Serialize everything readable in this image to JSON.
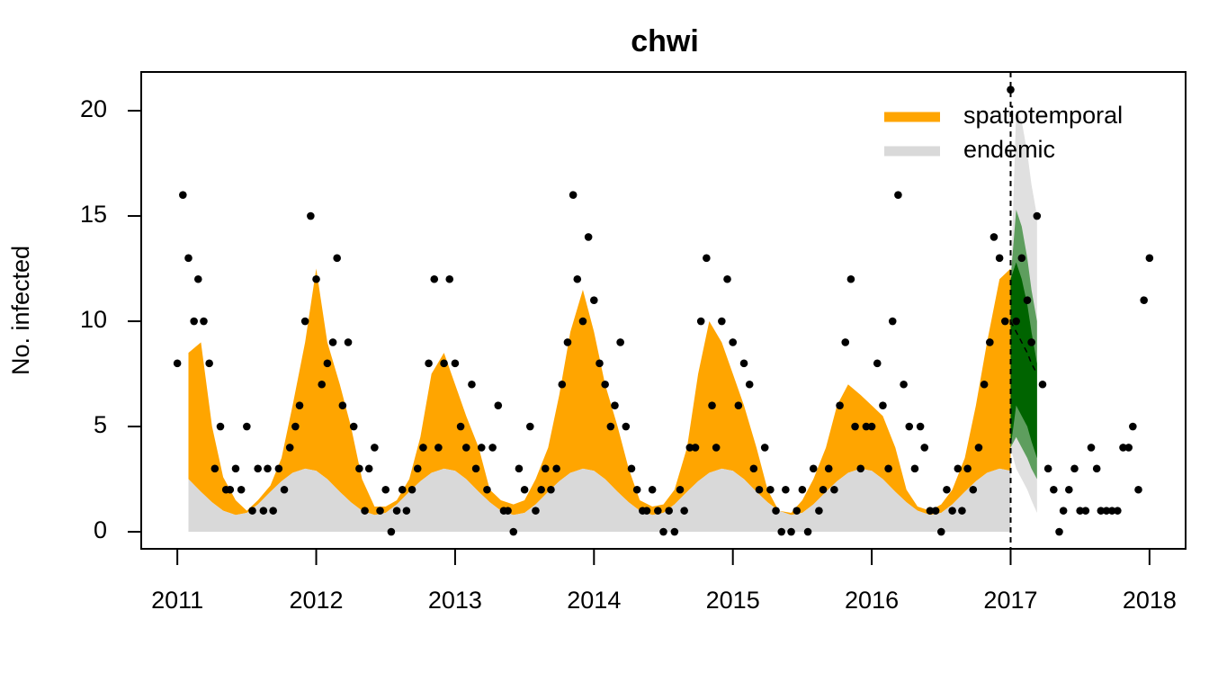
{
  "chart_data": {
    "type": "area",
    "title": "chwi",
    "y_label": "No. infected",
    "xlim": [
      2010.74,
      2018.26
    ],
    "ylim": [
      -0.81,
      21.84
    ],
    "xticks": [
      2011,
      2012,
      2013,
      2014,
      2015,
      2016,
      2017,
      2018
    ],
    "yticks": [
      0,
      5,
      10,
      15,
      20
    ],
    "legend": "topright",
    "x": [
      2011.08,
      2011.17,
      2011.25,
      2011.33,
      2011.42,
      2011.5,
      2011.58,
      2011.67,
      2011.75,
      2011.83,
      2011.92,
      2012.0,
      2012.08,
      2012.17,
      2012.25,
      2012.33,
      2012.42,
      2012.5,
      2012.58,
      2012.67,
      2012.75,
      2012.83,
      2012.92,
      2013.0,
      2013.08,
      2013.17,
      2013.25,
      2013.33,
      2013.42,
      2013.5,
      2013.58,
      2013.67,
      2013.75,
      2013.83,
      2013.92,
      2014.0,
      2014.08,
      2014.17,
      2014.25,
      2014.33,
      2014.42,
      2014.5,
      2014.58,
      2014.67,
      2014.75,
      2014.83,
      2014.92,
      2015.0,
      2015.08,
      2015.17,
      2015.25,
      2015.33,
      2015.42,
      2015.5,
      2015.58,
      2015.67,
      2015.75,
      2015.83,
      2015.92,
      2016.0,
      2016.08,
      2016.17,
      2016.25,
      2016.33,
      2016.42,
      2016.5,
      2016.58,
      2016.67,
      2016.75,
      2016.83,
      2016.92,
      2017.0
    ],
    "series": [
      {
        "name": "endemic",
        "color": "#D9D9D9",
        "values": [
          2.5,
          1.9,
          1.4,
          1.0,
          0.8,
          0.9,
          1.3,
          1.9,
          2.4,
          2.8,
          3.0,
          2.9,
          2.5,
          1.9,
          1.4,
          1.0,
          0.8,
          0.9,
          1.3,
          1.9,
          2.4,
          2.8,
          3.0,
          2.9,
          2.5,
          1.9,
          1.4,
          1.0,
          0.8,
          0.9,
          1.3,
          1.9,
          2.4,
          2.8,
          3.0,
          2.9,
          2.5,
          1.9,
          1.4,
          1.0,
          0.8,
          0.9,
          1.3,
          1.9,
          2.4,
          2.8,
          3.0,
          2.9,
          2.5,
          1.9,
          1.4,
          1.0,
          0.8,
          0.9,
          1.3,
          1.9,
          2.4,
          2.8,
          3.0,
          2.9,
          2.5,
          1.9,
          1.4,
          1.0,
          0.8,
          0.9,
          1.3,
          1.9,
          2.4,
          2.8,
          3.0,
          2.9
        ]
      },
      {
        "name": "spatiotemporal",
        "color": "#FFA500",
        "values": [
          6.0,
          7.1,
          3.6,
          1.6,
          0.7,
          0.1,
          0.2,
          0.3,
          1.1,
          3.2,
          6.0,
          9.6,
          6.5,
          5.1,
          3.6,
          1.5,
          0.4,
          0.3,
          0.2,
          0.6,
          2.1,
          4.7,
          5.5,
          4.1,
          3.0,
          2.1,
          0.6,
          0.5,
          0.5,
          0.6,
          1.2,
          2.1,
          4.1,
          6.7,
          8.5,
          6.6,
          4.5,
          3.1,
          1.6,
          0.5,
          0.4,
          0.4,
          0.7,
          2.1,
          5.1,
          7.2,
          6.0,
          4.6,
          3.5,
          2.1,
          0.6,
          0.0,
          0.1,
          0.6,
          1.2,
          2.1,
          3.6,
          4.2,
          3.5,
          3.1,
          3.0,
          2.1,
          0.6,
          0.2,
          0.2,
          0.4,
          0.7,
          1.6,
          3.6,
          6.2,
          9.0,
          9.6
        ]
      }
    ],
    "observed": {
      "color": "#000000",
      "x": [
        2011.0,
        2011.04,
        2011.08,
        2011.12,
        2011.15,
        2011.19,
        2011.23,
        2011.27,
        2011.31,
        2011.35,
        2011.38,
        2011.42,
        2011.46,
        2011.5,
        2011.54,
        2011.58,
        2011.62,
        2011.65,
        2011.69,
        2011.73,
        2011.77,
        2011.81,
        2011.85,
        2011.88,
        2011.92,
        2011.96,
        2012.0,
        2012.04,
        2012.08,
        2012.12,
        2012.15,
        2012.19,
        2012.23,
        2012.27,
        2012.31,
        2012.35,
        2012.38,
        2012.42,
        2012.46,
        2012.5,
        2012.54,
        2012.58,
        2012.62,
        2012.65,
        2012.69,
        2012.73,
        2012.77,
        2012.81,
        2012.85,
        2012.88,
        2012.92,
        2012.96,
        2013.0,
        2013.04,
        2013.08,
        2013.12,
        2013.15,
        2013.19,
        2013.23,
        2013.27,
        2013.31,
        2013.35,
        2013.38,
        2013.42,
        2013.46,
        2013.5,
        2013.54,
        2013.58,
        2013.62,
        2013.65,
        2013.69,
        2013.73,
        2013.77,
        2013.81,
        2013.85,
        2013.88,
        2013.92,
        2013.96,
        2014.0,
        2014.04,
        2014.08,
        2014.12,
        2014.15,
        2014.19,
        2014.23,
        2014.27,
        2014.31,
        2014.35,
        2014.38,
        2014.42,
        2014.46,
        2014.5,
        2014.54,
        2014.58,
        2014.62,
        2014.65,
        2014.69,
        2014.73,
        2014.77,
        2014.81,
        2014.85,
        2014.88,
        2014.92,
        2014.96,
        2015.0,
        2015.04,
        2015.08,
        2015.12,
        2015.15,
        2015.19,
        2015.23,
        2015.27,
        2015.31,
        2015.35,
        2015.38,
        2015.42,
        2015.46,
        2015.5,
        2015.54,
        2015.58,
        2015.62,
        2015.65,
        2015.69,
        2015.73,
        2015.77,
        2015.81,
        2015.85,
        2015.88,
        2015.92,
        2015.96,
        2016.0,
        2016.04,
        2016.08,
        2016.12,
        2016.15,
        2016.19,
        2016.23,
        2016.27,
        2016.31,
        2016.35,
        2016.38,
        2016.42,
        2016.46,
        2016.5,
        2016.54,
        2016.58,
        2016.62,
        2016.65,
        2016.69,
        2016.73,
        2016.77,
        2016.81,
        2016.85,
        2016.88,
        2016.92,
        2016.96,
        2017.0,
        2017.04,
        2017.08,
        2017.12,
        2017.15,
        2017.19,
        2017.23,
        2017.27,
        2017.31,
        2017.35,
        2017.38,
        2017.42,
        2017.46,
        2017.5,
        2017.54,
        2017.58,
        2017.62,
        2017.65,
        2017.69,
        2017.73,
        2017.77,
        2017.81,
        2017.85,
        2017.88,
        2017.92,
        2017.96,
        2018.0
      ],
      "values": [
        8,
        16,
        13,
        10,
        12,
        10,
        8,
        3,
        5,
        2,
        2,
        3,
        2,
        5,
        1,
        3,
        1,
        3,
        1,
        3,
        2,
        4,
        5,
        6,
        10,
        15,
        12,
        7,
        8,
        9,
        13,
        6,
        9,
        5,
        3,
        1,
        3,
        4,
        1,
        2,
        0,
        1,
        2,
        1,
        2,
        3,
        4,
        8,
        12,
        4,
        8,
        12,
        8,
        5,
        4,
        7,
        3,
        4,
        2,
        4,
        6,
        1,
        1,
        0,
        3,
        2,
        5,
        1,
        2,
        3,
        2,
        3,
        7,
        9,
        16,
        12,
        10,
        14,
        11,
        8,
        7,
        5,
        6,
        9,
        5,
        3,
        2,
        1,
        1,
        2,
        1,
        0,
        1,
        0,
        2,
        1,
        4,
        4,
        10,
        13,
        6,
        4,
        10,
        12,
        9,
        6,
        8,
        7,
        3,
        2,
        4,
        2,
        1,
        0,
        2,
        0,
        1,
        2,
        0,
        3,
        1,
        2,
        3,
        2,
        6,
        9,
        12,
        5,
        3,
        5,
        5,
        8,
        6,
        3,
        10,
        16,
        7,
        5,
        3,
        5,
        4,
        1,
        1,
        0,
        2,
        1,
        3,
        1,
        3,
        2,
        4,
        7,
        9,
        14,
        13,
        10,
        21,
        10,
        13,
        11,
        9,
        15,
        7,
        3,
        2,
        0,
        1,
        2,
        3,
        1,
        1,
        4,
        3,
        1,
        1,
        1,
        1,
        4,
        4,
        5,
        2,
        11,
        13
      ]
    },
    "forecast_start": 2017.0,
    "forecast": {
      "x": [
        2017.0,
        2017.04,
        2017.08,
        2017.12,
        2017.15,
        2017.19
      ],
      "bands": [
        {
          "color": "#E0E0E0",
          "lower": [
            4,
            3,
            2.5,
            2,
            1.5,
            0.9
          ],
          "upper": [
            11.5,
            20,
            19.5,
            18,
            16.5,
            15
          ]
        },
        {
          "color": "#5E9E5E",
          "lower": [
            4,
            4.5,
            4,
            3.5,
            3,
            2.5
          ],
          "upper": [
            12,
            15.3,
            14.5,
            13,
            11.5,
            10
          ]
        },
        {
          "color": "#006400",
          "lower": [
            4,
            6,
            5.5,
            5,
            4.3,
            3.5
          ],
          "upper": [
            12,
            12.8,
            12,
            10.8,
            9.5,
            8
          ]
        }
      ],
      "median": [
        10,
        9.5,
        9,
        8.5,
        8,
        7.5
      ]
    }
  }
}
